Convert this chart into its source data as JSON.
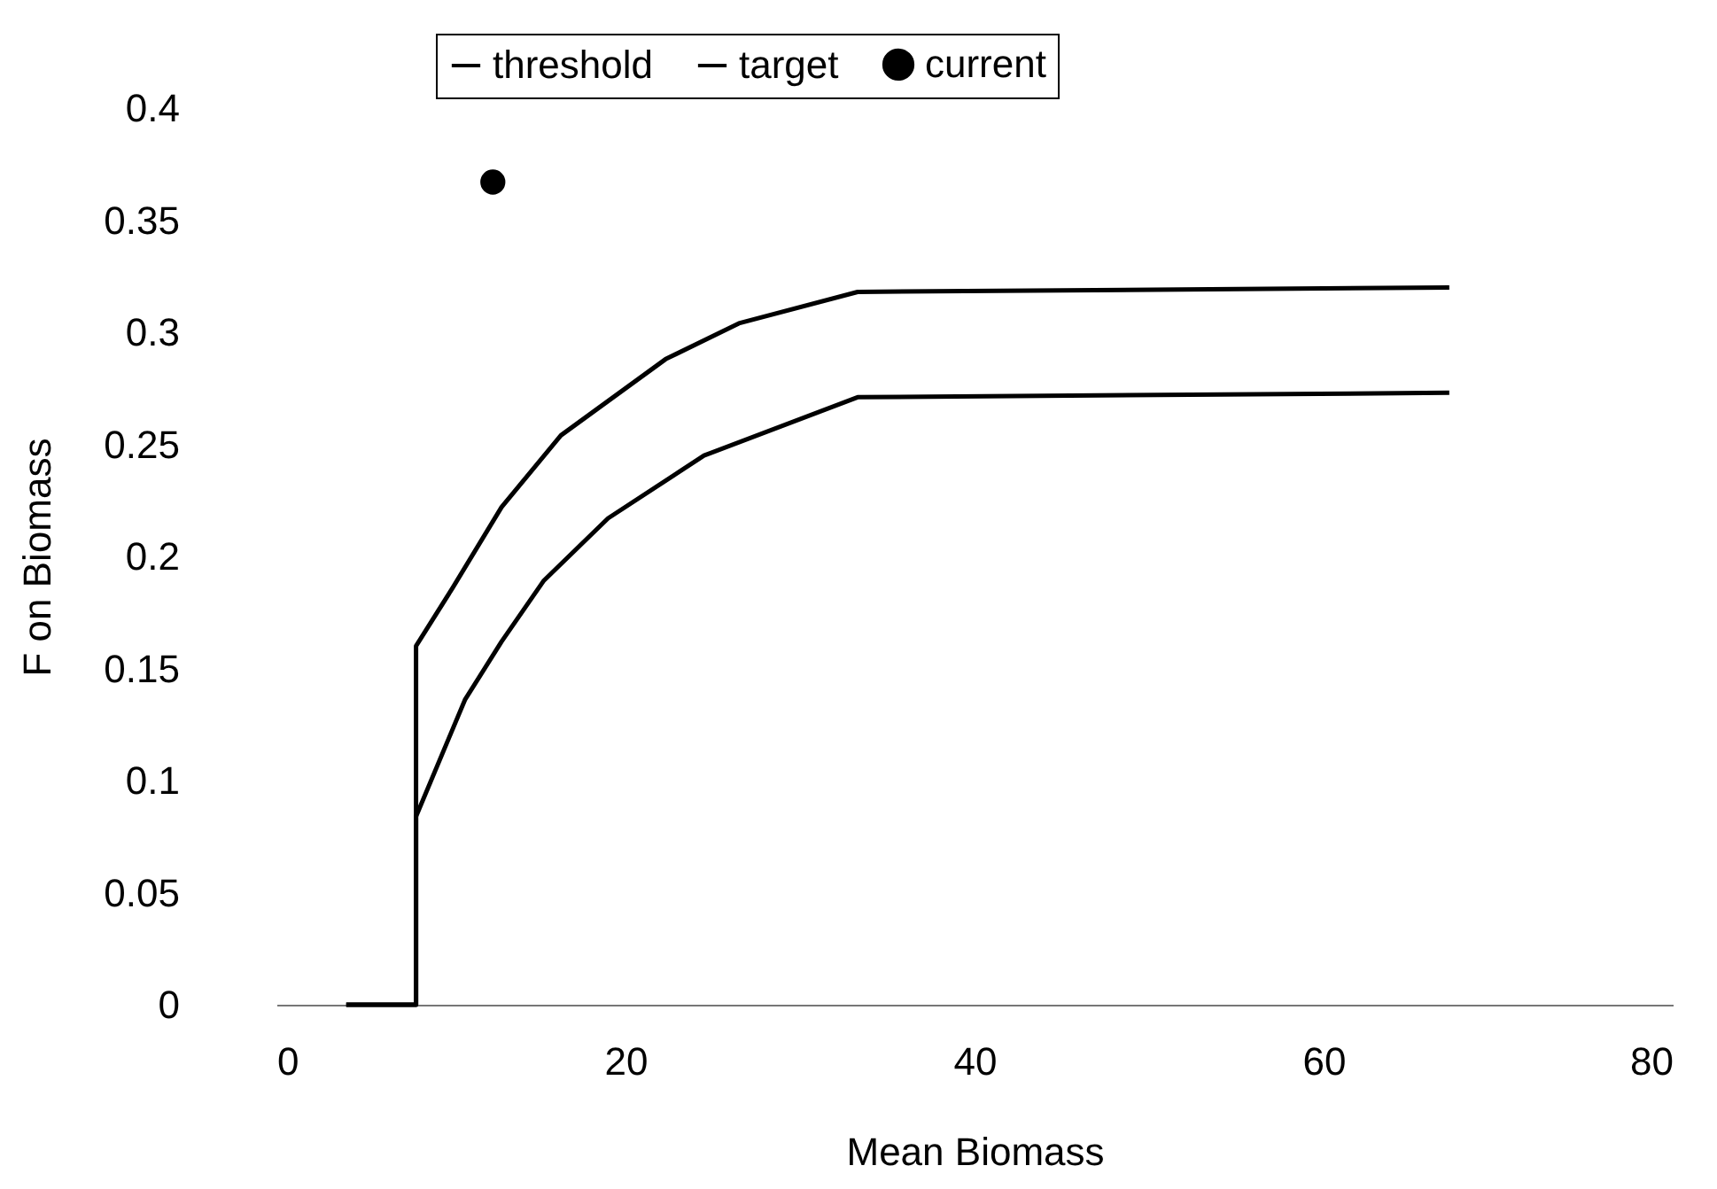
{
  "chart_data": {
    "type": "line",
    "xlabel": "Mean Biomass",
    "ylabel": "F on Biomass",
    "xlim": [
      0,
      80
    ],
    "xticks": [
      0,
      20,
      40,
      60,
      80
    ],
    "ylim": [
      0,
      0.4
    ],
    "yticks": [
      0,
      0.05,
      0.1,
      0.15,
      0.2,
      0.25,
      0.3,
      0.35,
      0.4
    ],
    "grid": false,
    "legend": "top",
    "line_style": "solid",
    "series": [
      {
        "name": "threshold",
        "color": "#000000",
        "x": [
          4,
          8,
          8,
          10.1,
          12.9,
          16.3,
          22.3,
          26.5,
          33.3,
          67.2
        ],
        "values": [
          0,
          0,
          0.16,
          0.186,
          0.222,
          0.254,
          0.288,
          0.304,
          0.318,
          0.32
        ]
      },
      {
        "name": "target",
        "color": "#000000",
        "x": [
          4,
          8,
          8,
          10.8,
          12.9,
          15.3,
          19.0,
          24.5,
          33.3,
          67.2
        ],
        "values": [
          0,
          0,
          0.084,
          0.136,
          0.162,
          0.189,
          0.217,
          0.245,
          0.271,
          0.273
        ]
      },
      {
        "name": "current",
        "type": "scatter",
        "marker": "circle",
        "color": "#000000",
        "x": [
          12.4
        ],
        "values": [
          0.367
        ]
      }
    ]
  }
}
